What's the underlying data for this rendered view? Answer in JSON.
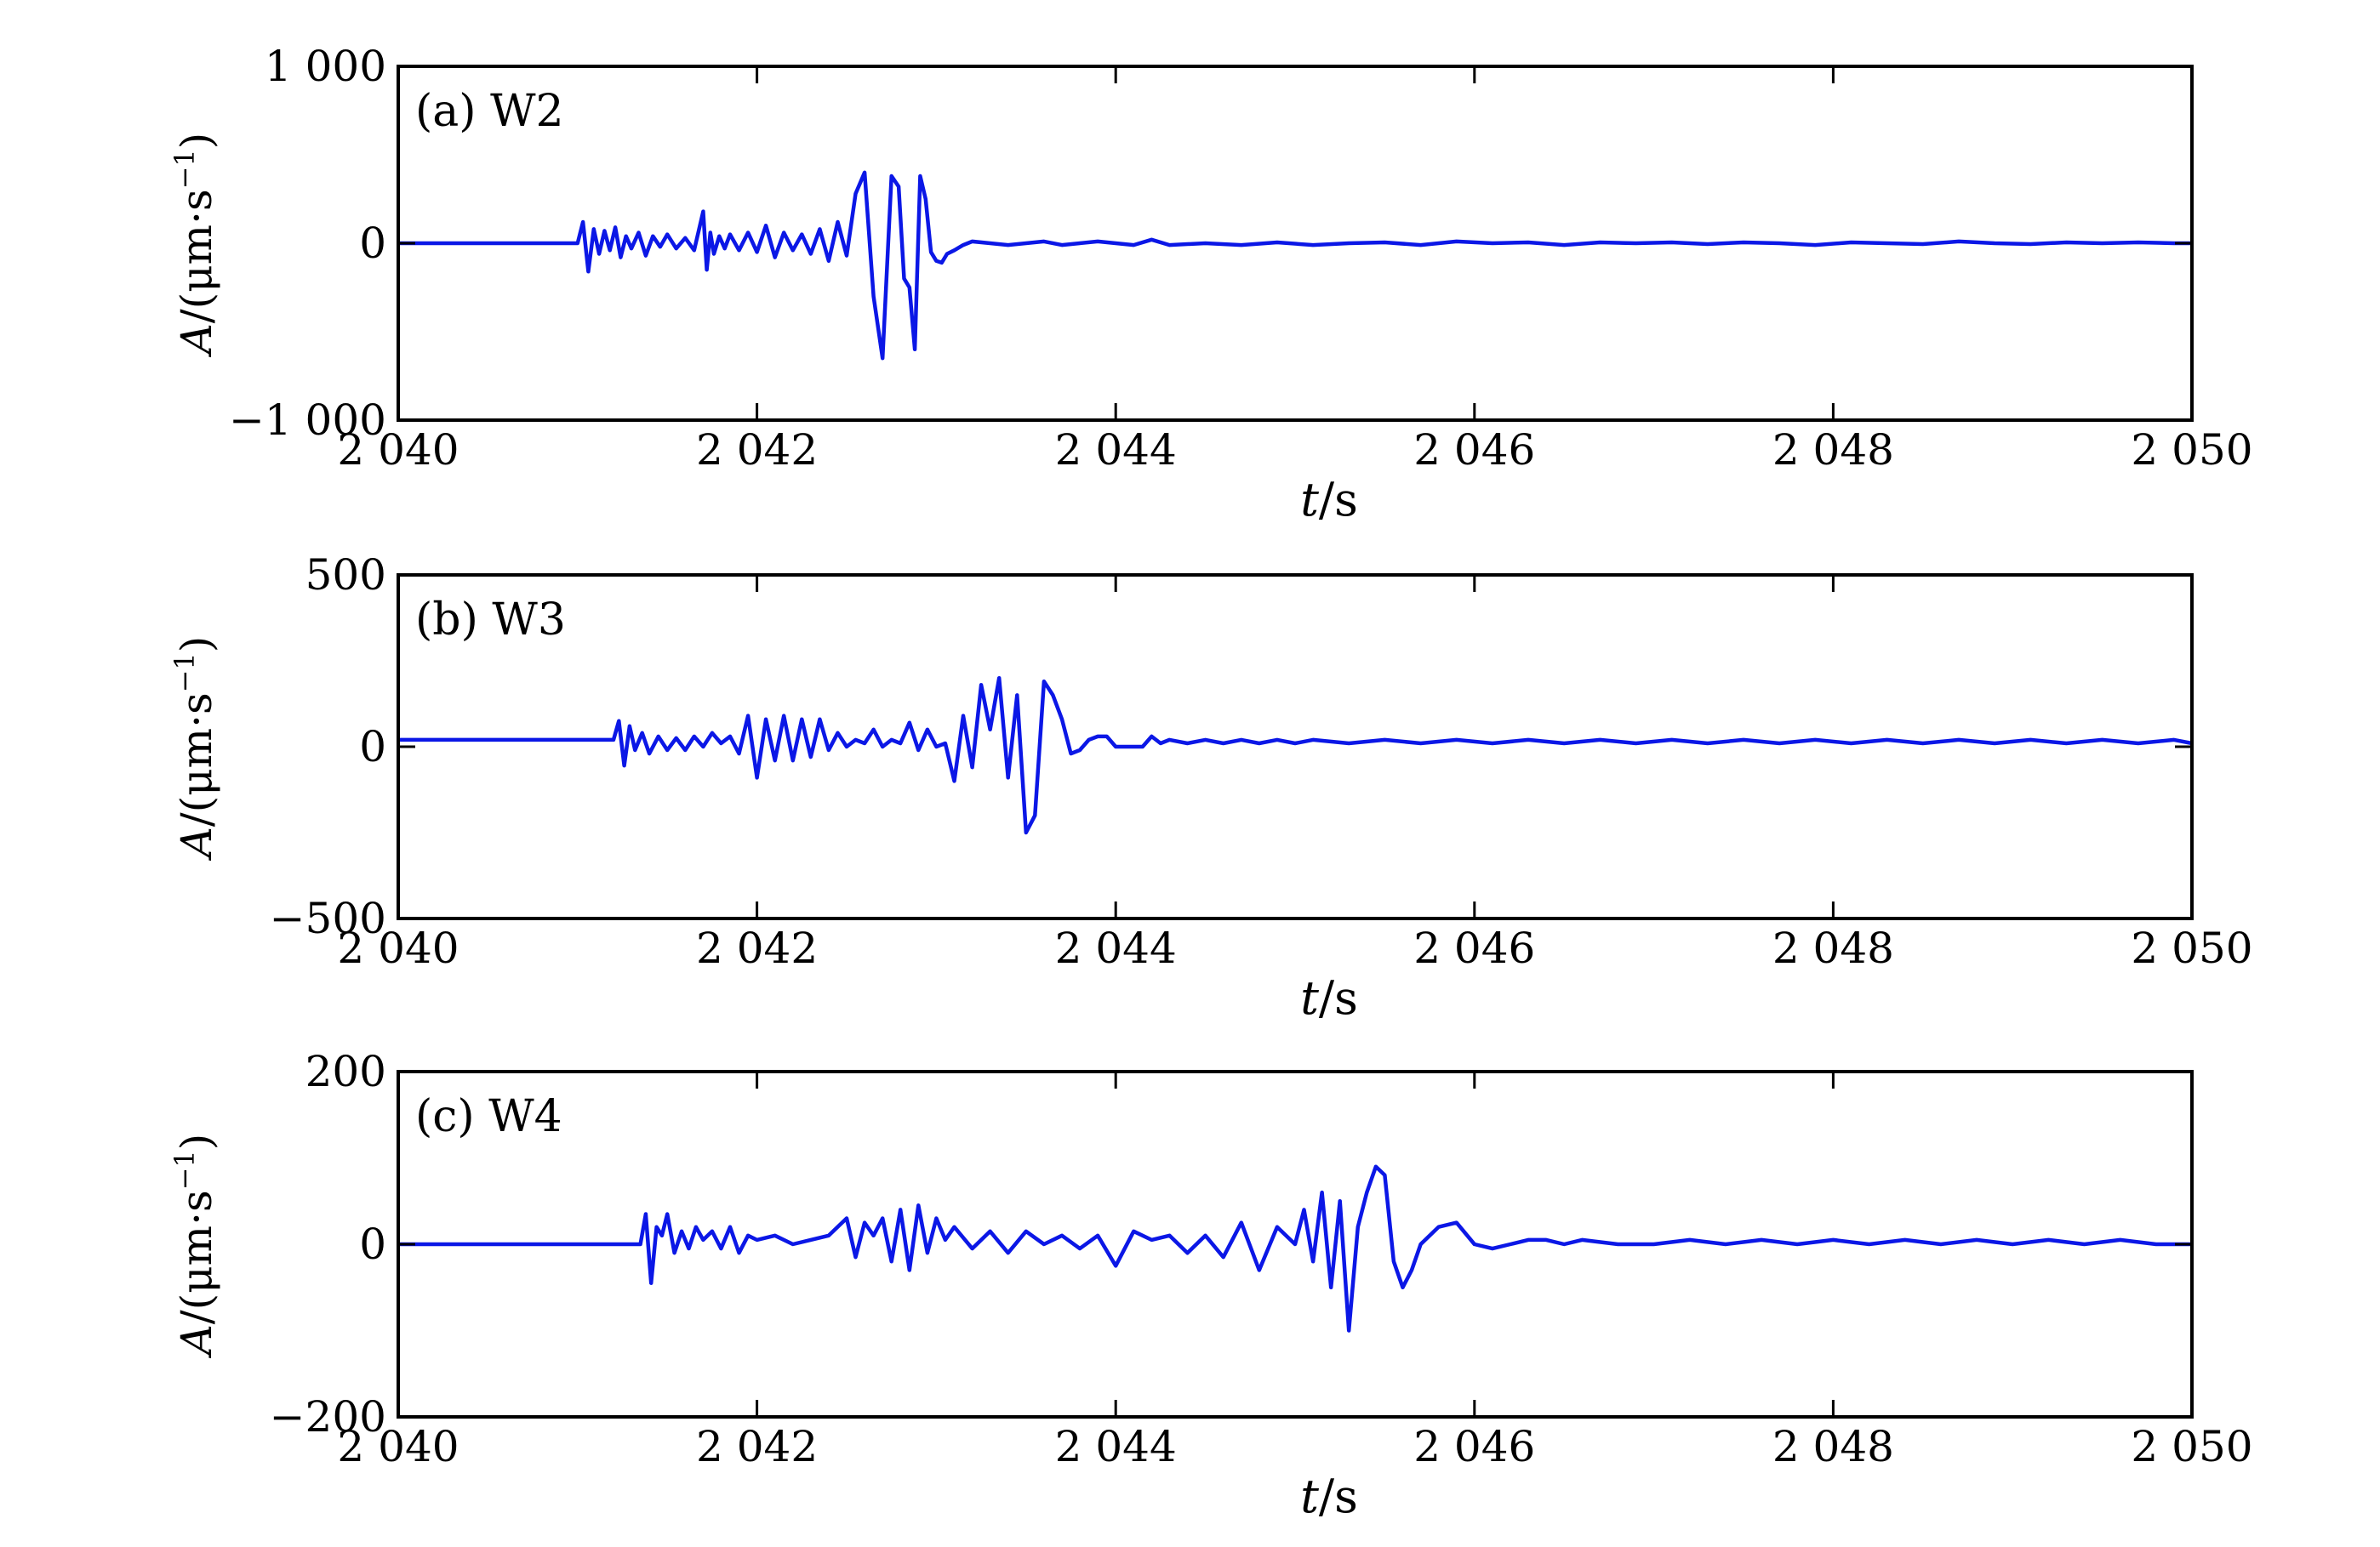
{
  "chart_data": [
    {
      "type": "line",
      "panel_label": "(a) W2",
      "xlabel_var": "t",
      "xlabel_unit": "/s",
      "ylabel_var": "A",
      "ylabel_unit": "/(μm·s",
      "ylabel_exp": "−1",
      "ylabel_close": ")",
      "xlim": [
        2040,
        2050
      ],
      "ylim": [
        -1000,
        1000
      ],
      "xticks": [
        2040,
        2042,
        2044,
        2046,
        2048,
        2050
      ],
      "xtick_labels": [
        "2 040",
        "2 042",
        "2 044",
        "2 046",
        "2 048",
        "2 050"
      ],
      "yticks": [
        -1000,
        0,
        1000
      ],
      "ytick_labels": [
        "−1 000",
        "0",
        "1 000"
      ],
      "series_color": "#0b17e6",
      "x": [
        2040.0,
        2041.0,
        2041.03,
        2041.06,
        2041.09,
        2041.12,
        2041.15,
        2041.18,
        2041.21,
        2041.24,
        2041.27,
        2041.3,
        2041.34,
        2041.38,
        2041.42,
        2041.46,
        2041.5,
        2041.55,
        2041.6,
        2041.65,
        2041.7,
        2041.72,
        2041.74,
        2041.76,
        2041.79,
        2041.82,
        2041.85,
        2041.9,
        2041.95,
        2042.0,
        2042.05,
        2042.1,
        2042.15,
        2042.2,
        2042.25,
        2042.3,
        2042.35,
        2042.4,
        2042.45,
        2042.5,
        2042.55,
        2042.6,
        2042.65,
        2042.7,
        2042.75,
        2042.79,
        2042.82,
        2042.85,
        2042.88,
        2042.91,
        2042.94,
        2042.97,
        2043.0,
        2043.03,
        2043.06,
        2043.1,
        2043.15,
        2043.2,
        2043.3,
        2043.4,
        2043.5,
        2043.6,
        2043.7,
        2043.8,
        2043.9,
        2044.0,
        2044.1,
        2044.2,
        2044.3,
        2044.5,
        2044.7,
        2044.9,
        2045.1,
        2045.3,
        2045.5,
        2045.7,
        2045.9,
        2046.1,
        2046.3,
        2046.5,
        2046.7,
        2046.9,
        2047.1,
        2047.3,
        2047.5,
        2047.7,
        2047.9,
        2048.1,
        2048.3,
        2048.5,
        2048.7,
        2048.9,
        2049.1,
        2049.3,
        2049.5,
        2049.7,
        2049.9,
        2050.0
      ],
      "y": [
        0,
        0,
        120,
        -160,
        80,
        -60,
        70,
        -40,
        90,
        -80,
        40,
        -30,
        60,
        -70,
        40,
        -20,
        50,
        -30,
        30,
        -40,
        180,
        -150,
        60,
        -60,
        40,
        -30,
        50,
        -40,
        60,
        -50,
        100,
        -80,
        60,
        -40,
        50,
        -60,
        80,
        -100,
        120,
        -70,
        280,
        400,
        -300,
        -650,
        380,
        320,
        -200,
        -250,
        -600,
        380,
        250,
        -50,
        -100,
        -110,
        -60,
        -40,
        -10,
        10,
        0,
        -10,
        0,
        10,
        -10,
        0,
        10,
        0,
        -10,
        20,
        -10,
        0,
        -10,
        5,
        -10,
        0,
        5,
        -10,
        10,
        0,
        5,
        -10,
        5,
        0,
        5,
        -5,
        5,
        0,
        -10,
        5,
        0,
        -5,
        10,
        0,
        -5,
        5,
        0,
        5,
        0,
        0
      ]
    },
    {
      "type": "line",
      "panel_label": "(b) W3",
      "xlabel_var": "t",
      "xlabel_unit": "/s",
      "ylabel_var": "A",
      "ylabel_unit": "/(μm·s",
      "ylabel_exp": "−1",
      "ylabel_close": ")",
      "xlim": [
        2040,
        2050
      ],
      "ylim": [
        -500,
        500
      ],
      "xticks": [
        2040,
        2042,
        2044,
        2046,
        2048,
        2050
      ],
      "xtick_labels": [
        "2 040",
        "2 042",
        "2 044",
        "2 046",
        "2 048",
        "2 050"
      ],
      "yticks": [
        -500,
        0,
        500
      ],
      "ytick_labels": [
        "−500",
        "0",
        "500"
      ],
      "series_color": "#0b17e6",
      "x": [
        2040.0,
        2041.2,
        2041.23,
        2041.26,
        2041.29,
        2041.32,
        2041.36,
        2041.4,
        2041.45,
        2041.5,
        2041.55,
        2041.6,
        2041.65,
        2041.7,
        2041.75,
        2041.8,
        2041.85,
        2041.9,
        2041.95,
        2042.0,
        2042.05,
        2042.1,
        2042.15,
        2042.2,
        2042.25,
        2042.3,
        2042.35,
        2042.4,
        2042.45,
        2042.5,
        2042.55,
        2042.6,
        2042.65,
        2042.7,
        2042.75,
        2042.8,
        2042.85,
        2042.9,
        2042.95,
        2043.0,
        2043.05,
        2043.1,
        2043.15,
        2043.2,
        2043.25,
        2043.3,
        2043.35,
        2043.4,
        2043.45,
        2043.5,
        2043.55,
        2043.6,
        2043.65,
        2043.7,
        2043.75,
        2043.8,
        2043.85,
        2043.9,
        2043.95,
        2044.0,
        2044.05,
        2044.1,
        2044.15,
        2044.2,
        2044.25,
        2044.3,
        2044.4,
        2044.5,
        2044.6,
        2044.7,
        2044.8,
        2044.9,
        2045.0,
        2045.1,
        2045.3,
        2045.5,
        2045.7,
        2045.9,
        2046.1,
        2046.3,
        2046.5,
        2046.7,
        2046.9,
        2047.1,
        2047.3,
        2047.5,
        2047.7,
        2047.9,
        2048.1,
        2048.3,
        2048.5,
        2048.7,
        2048.9,
        2049.1,
        2049.3,
        2049.5,
        2049.7,
        2049.9,
        2050.0
      ],
      "y": [
        20,
        20,
        75,
        -55,
        60,
        -10,
        40,
        -20,
        30,
        -10,
        25,
        -10,
        30,
        0,
        40,
        10,
        30,
        -20,
        90,
        -90,
        80,
        -40,
        90,
        -40,
        80,
        -30,
        80,
        -10,
        40,
        0,
        20,
        10,
        50,
        0,
        20,
        10,
        70,
        -10,
        50,
        0,
        10,
        -100,
        90,
        -60,
        180,
        50,
        200,
        -90,
        150,
        -250,
        -200,
        190,
        150,
        80,
        -20,
        -10,
        20,
        30,
        30,
        0,
        0,
        0,
        0,
        30,
        10,
        20,
        10,
        20,
        10,
        20,
        10,
        20,
        10,
        20,
        10,
        20,
        10,
        20,
        10,
        20,
        10,
        20,
        10,
        20,
        10,
        20,
        10,
        20,
        10,
        20,
        10,
        20,
        10,
        20,
        10,
        20,
        10,
        20,
        10
      ]
    },
    {
      "type": "line",
      "panel_label": "(c) W4",
      "xlabel_var": "t",
      "xlabel_unit": "/s",
      "ylabel_var": "A",
      "ylabel_unit": "/(μm·s",
      "ylabel_exp": "−1",
      "ylabel_close": ")",
      "xlim": [
        2040,
        2050
      ],
      "ylim": [
        -200,
        200
      ],
      "xticks": [
        2040,
        2042,
        2044,
        2046,
        2048,
        2050
      ],
      "xtick_labels": [
        "2 040",
        "2 042",
        "2 044",
        "2 046",
        "2 048",
        "2 050"
      ],
      "yticks": [
        -200,
        0,
        200
      ],
      "ytick_labels": [
        "−200",
        "0",
        "200"
      ],
      "series_color": "#0b17e6",
      "x": [
        2040.0,
        2041.35,
        2041.38,
        2041.41,
        2041.44,
        2041.47,
        2041.5,
        2041.54,
        2041.58,
        2041.62,
        2041.66,
        2041.7,
        2041.75,
        2041.8,
        2041.85,
        2041.9,
        2041.95,
        2042.0,
        2042.1,
        2042.2,
        2042.3,
        2042.4,
        2042.5,
        2042.55,
        2042.6,
        2042.65,
        2042.7,
        2042.75,
        2042.8,
        2042.85,
        2042.9,
        2042.95,
        2043.0,
        2043.05,
        2043.1,
        2043.2,
        2043.3,
        2043.4,
        2043.5,
        2043.6,
        2043.7,
        2043.8,
        2043.9,
        2044.0,
        2044.1,
        2044.2,
        2044.3,
        2044.4,
        2044.5,
        2044.6,
        2044.7,
        2044.8,
        2044.9,
        2045.0,
        2045.05,
        2045.1,
        2045.15,
        2045.2,
        2045.25,
        2045.3,
        2045.35,
        2045.4,
        2045.45,
        2045.5,
        2045.55,
        2045.6,
        2045.65,
        2045.7,
        2045.8,
        2045.9,
        2046.0,
        2046.1,
        2046.2,
        2046.3,
        2046.4,
        2046.5,
        2046.6,
        2046.8,
        2047.0,
        2047.2,
        2047.4,
        2047.6,
        2047.8,
        2048.0,
        2048.2,
        2048.4,
        2048.6,
        2048.8,
        2049.0,
        2049.2,
        2049.4,
        2049.6,
        2049.8,
        2050.0
      ],
      "y": [
        0,
        0,
        35,
        -45,
        20,
        10,
        35,
        -10,
        15,
        -5,
        20,
        5,
        15,
        -5,
        20,
        -10,
        10,
        5,
        10,
        0,
        5,
        10,
        30,
        -15,
        25,
        10,
        30,
        -20,
        40,
        -30,
        45,
        -10,
        30,
        5,
        20,
        -5,
        15,
        -10,
        15,
        0,
        10,
        -5,
        10,
        -25,
        15,
        5,
        10,
        -10,
        10,
        -15,
        25,
        -30,
        20,
        0,
        40,
        -20,
        60,
        -50,
        50,
        -100,
        20,
        60,
        90,
        80,
        -20,
        -50,
        -30,
        0,
        20,
        25,
        0,
        -5,
        0,
        5,
        5,
        0,
        5,
        0,
        0,
        5,
        0,
        5,
        0,
        5,
        0,
        5,
        0,
        5,
        0,
        5,
        0,
        5,
        0,
        0
      ]
    }
  ]
}
